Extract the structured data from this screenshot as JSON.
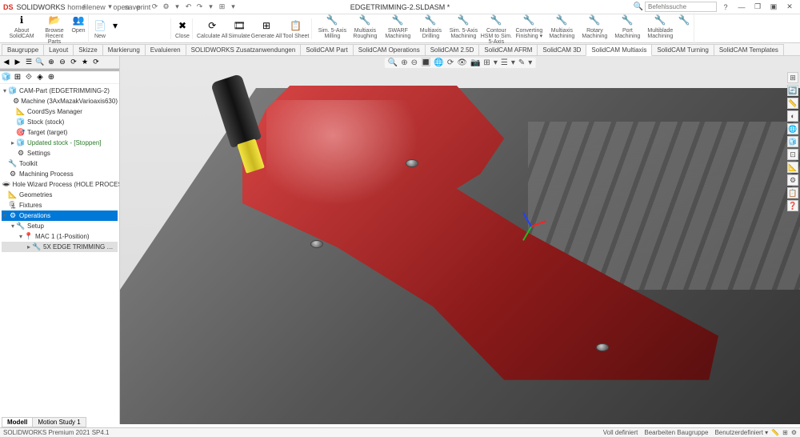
{
  "title_bar": {
    "logo_text": "DS",
    "brand_text": "SOLIDWORKS",
    "qat_icons": [
      "home",
      "file",
      "new",
      "▾",
      "open",
      "save",
      "print",
      "⟳",
      "⚙",
      "▾",
      "↶",
      "↷",
      "▾",
      "⊞",
      "▾"
    ],
    "document_title": "EDGETRIMMING-2.SLDASM *",
    "search_placeholder": "Befehlssuche",
    "search_icon": "🔍",
    "help_icon": "?",
    "min_icon": "—",
    "max_icon": "❐",
    "restore_icon": "▣",
    "close_icon": "✕"
  },
  "ribbon": {
    "groups": [
      {
        "icons": [
          "ℹ",
          "📂",
          "👥"
        ],
        "labels": [
          "About SolidCAM",
          "Browse Recent Parts",
          "Open"
        ]
      },
      {
        "icons": [
          "📄",
          "▾",
          "",
          "",
          ""
        ],
        "labels": [
          "New",
          ""
        ]
      },
      {
        "icons": [
          "✖"
        ],
        "labels": [
          "Close"
        ]
      },
      {
        "icons": [
          "⟳",
          "🎞",
          "⊞",
          "📋"
        ],
        "labels": [
          "Calculate All",
          "Simulate",
          "Generate All",
          "Tool Sheet"
        ]
      },
      {
        "icons": [
          "🔧",
          "🔧",
          "🔧",
          "🔧",
          "🔧",
          "🔧",
          "🔧",
          "🔧",
          "🔧",
          "🔧",
          "🔧",
          "🔧"
        ],
        "labels": [
          "Sim. 5-Axis Milling",
          "Multiaxis Roughing",
          "SWARF Machining",
          "Multiaxis Drilling",
          "Sim. 5-Axis Machining",
          "Contour HSM to Sim. 5-Axis",
          "Converting Finishing ▾",
          "Multiaxis Machining",
          "Rotary Machining",
          "Port Machining",
          "Multiblade Machining"
        ]
      }
    ]
  },
  "tabs": {
    "items": [
      "Baugruppe",
      "Layout",
      "Skizze",
      "Markierung",
      "Evaluieren",
      "SOLIDWORKS Zusatzanwendungen",
      "SolidCAM Part",
      "SolidCAM Operations",
      "SolidCAM 2.5D",
      "SolidCAM AFRM",
      "SolidCAM 3D",
      "SolidCAM Multiaxis",
      "SolidCAM Turning",
      "SolidCAM Templates"
    ],
    "active_index": 11
  },
  "tree_toolbar": {
    "icons": [
      "◀",
      "▶",
      "☰",
      "🔍",
      "⊕",
      "⊖",
      "⟳",
      "★",
      "⟳"
    ]
  },
  "tree_iconrow": {
    "icons": [
      "🧊",
      "⊞",
      "⟐",
      "◈",
      "⊕"
    ]
  },
  "tree": {
    "nodes": [
      {
        "indent": 0,
        "tw": "▾",
        "icon": "🧊",
        "label": "CAM-Part (EDGETRIMMING-2)",
        "color": "#333"
      },
      {
        "indent": 1,
        "tw": "",
        "icon": "⚙",
        "label": "Machine (3AxMazakVarioaxis630)",
        "color": "#333"
      },
      {
        "indent": 1,
        "tw": "",
        "icon": "📐",
        "label": "CoordSys Manager",
        "color": "#333"
      },
      {
        "indent": 1,
        "tw": "",
        "icon": "🧊",
        "label": "Stock (stock)",
        "color": "#333"
      },
      {
        "indent": 1,
        "tw": "",
        "icon": "🎯",
        "label": "Target (target)",
        "color": "#333"
      },
      {
        "indent": 1,
        "tw": "▸",
        "icon": "🧊",
        "label": "Updated stock - [Stoppen]",
        "class": "updated"
      },
      {
        "indent": 1,
        "tw": "",
        "icon": "⚙",
        "label": "Settings",
        "color": "#333"
      },
      {
        "indent": 0,
        "tw": "",
        "icon": "🔧",
        "label": "Toolkit",
        "color": "#333"
      },
      {
        "indent": 0,
        "tw": "",
        "icon": "⚙",
        "label": "Machining Process",
        "color": "#333"
      },
      {
        "indent": 0,
        "tw": "",
        "icon": "🕳",
        "label": "Hole Wizard Process (HOLE PROCESSES",
        "color": "#333"
      },
      {
        "indent": 0,
        "tw": "",
        "icon": "📐",
        "label": "Geometries",
        "color": "#333"
      },
      {
        "indent": 0,
        "tw": "",
        "icon": "🗜",
        "label": "Fixtures",
        "color": "#333"
      },
      {
        "indent": 0,
        "tw": "▾",
        "icon": "⚙",
        "label": "Operations",
        "selected": true
      },
      {
        "indent": 1,
        "tw": "▾",
        "icon": "🔧",
        "label": "Setup",
        "color": "#333"
      },
      {
        "indent": 2,
        "tw": "▾",
        "icon": "📍",
        "label": "MAC 1 (1-Position)",
        "color": "#333"
      },
      {
        "indent": 3,
        "tw": "▸",
        "icon": "🔧",
        "label": "5X EDGE TRIMMING …",
        "color": "#333",
        "bg": "#e0e0e0"
      }
    ]
  },
  "viewport_toolbar": {
    "icons": [
      "🔍",
      "⊕",
      "⊖",
      "🔳",
      "🌐",
      "⟳",
      "👁",
      "📷",
      "⊞",
      "▾",
      "☰",
      "▾",
      "✎",
      "▾"
    ]
  },
  "side_toolbar": {
    "icons": [
      "⊞",
      "🔄",
      "📏",
      "◐",
      "🌐",
      "🧊",
      "⊡",
      "📐",
      "⚙",
      "📋",
      "❓"
    ]
  },
  "colors": {
    "part_red_light": "#d94545",
    "part_red_dark": "#8b1a1a",
    "tool_black": "#1a1a1a",
    "tool_yellow": "#f0df30",
    "fixture_grey": "#666666"
  },
  "bottom_tabs": {
    "items": [
      "Modell",
      "Motion Study 1"
    ],
    "active_index": 0
  },
  "status_bar": {
    "left": "SOLIDWORKS Premium 2021 SP4.1",
    "right1": "Voll definiert",
    "right2": "Bearbeiten Baugruppe",
    "right3": "Benutzerdefiniert  ▾",
    "icons": [
      "📏",
      "⊞",
      "⚙"
    ]
  }
}
